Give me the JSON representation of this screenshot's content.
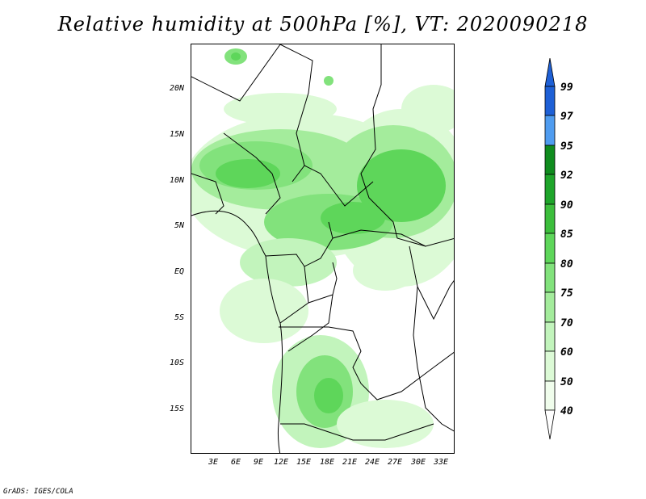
{
  "title": "Relative humidity at 500hPa [%], VT: 2020090218",
  "footer": "GrADS: IGES/COLA",
  "map": {
    "lat_labels": [
      "20N",
      "15N",
      "10N",
      "5N",
      "EQ",
      "5S",
      "10S",
      "15S"
    ],
    "lon_labels": [
      "3E",
      "6E",
      "9E",
      "12E",
      "15E",
      "18E",
      "21E",
      "24E",
      "27E",
      "30E",
      "33E"
    ]
  },
  "colorbar": {
    "levels": [
      "99",
      "97",
      "95",
      "92",
      "90",
      "85",
      "80",
      "75",
      "70",
      "60",
      "50",
      "40"
    ],
    "colors": [
      "#1e60d6",
      "#2f7fe6",
      "#4f9cf0",
      "#0f8c1e",
      "#1ea52a",
      "#3cbe3c",
      "#5ed65a",
      "#82e27c",
      "#a4ec9c",
      "#c2f4bc",
      "#dcfad6",
      "#f0fdec"
    ],
    "unit": "%"
  }
}
